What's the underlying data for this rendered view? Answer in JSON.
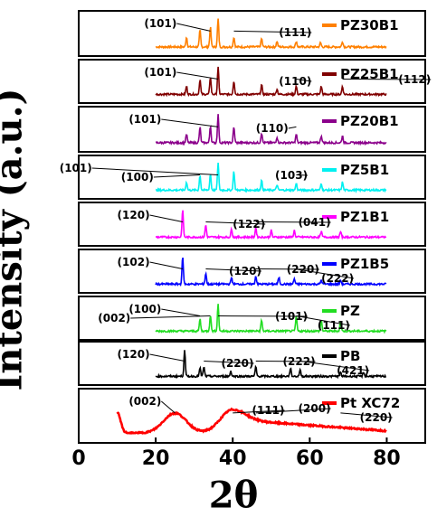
{
  "chart_data": {
    "type": "line",
    "xlabel": "2θ",
    "ylabel": "Intensity (a.u.)",
    "xlim": [
      0,
      90
    ],
    "xticks": [
      "0",
      "20",
      "40",
      "60",
      "80"
    ],
    "series": [
      {
        "name": "PZ30B1",
        "color": "#ff8000",
        "x_range": [
          20,
          80
        ],
        "peaks": [
          [
            28,
            0.35
          ],
          [
            31.5,
            0.6
          ],
          [
            34.2,
            0.7
          ],
          [
            36.2,
            1.0
          ],
          [
            40.3,
            0.35
          ],
          [
            47.5,
            0.3
          ],
          [
            51.5,
            0.2
          ],
          [
            56.5,
            0.2
          ],
          [
            62.8,
            0.15
          ],
          [
            68.5,
            0.2
          ]
        ],
        "annotations": [
          {
            "text": "(101)",
            "lx": 17,
            "peak_x": 34.2
          },
          {
            "text": "(111)",
            "lx": 52,
            "peak_x": 40.3
          }
        ]
      },
      {
        "name": "PZ25B1",
        "color": "#800000",
        "x_range": [
          20,
          80
        ],
        "peaks": [
          [
            28,
            0.3
          ],
          [
            31.5,
            0.55
          ],
          [
            34.2,
            0.65
          ],
          [
            36.2,
            1.0
          ],
          [
            40.3,
            0.5
          ],
          [
            47.5,
            0.35
          ],
          [
            51.5,
            0.2
          ],
          [
            56.5,
            0.3
          ],
          [
            63,
            0.3
          ],
          [
            68.5,
            0.3
          ]
        ],
        "annotations": [
          {
            "text": "(101)",
            "lx": 17,
            "peak_x": 36.2
          },
          {
            "text": "(110)",
            "lx": 52,
            "peak_x": 56.5
          },
          {
            "text": "(112)",
            "lx": 83,
            "peak_x": 68.5
          }
        ]
      },
      {
        "name": "PZ20B1",
        "color": "#8b008b",
        "x_range": [
          20,
          80
        ],
        "peaks": [
          [
            28,
            0.3
          ],
          [
            31.5,
            0.55
          ],
          [
            34.2,
            0.6
          ],
          [
            36.2,
            1.0
          ],
          [
            40.3,
            0.55
          ],
          [
            47.5,
            0.35
          ],
          [
            51.5,
            0.2
          ],
          [
            56.5,
            0.3
          ],
          [
            63,
            0.25
          ],
          [
            68.5,
            0.25
          ]
        ],
        "annotations": [
          {
            "text": "(101)",
            "lx": 13,
            "peak_x": 36.2
          },
          {
            "text": "(110)",
            "lx": 46,
            "peak_x": 56.5
          }
        ]
      },
      {
        "name": "PZ5B1",
        "color": "#00f0f0",
        "x_range": [
          20,
          80
        ],
        "peaks": [
          [
            28,
            0.3
          ],
          [
            31.5,
            0.55
          ],
          [
            34.2,
            0.6
          ],
          [
            36.2,
            1.0
          ],
          [
            40.3,
            0.7
          ],
          [
            47.5,
            0.35
          ],
          [
            51.5,
            0.2
          ],
          [
            56.5,
            0.25
          ],
          [
            63,
            0.25
          ],
          [
            68.5,
            0.3
          ]
        ],
        "annotations": [
          {
            "text": "(101)",
            "lx": -5,
            "peak_x": 36.2
          },
          {
            "text": "(100)",
            "lx": 11,
            "peak_x": 31.5
          },
          {
            "text": "(103)",
            "lx": 51,
            "peak_x": 56.5
          }
        ]
      },
      {
        "name": "PZ1B1",
        "color": "#ff00ff",
        "x_range": [
          20,
          80
        ],
        "peaks": [
          [
            27,
            1.0
          ],
          [
            33,
            0.45
          ],
          [
            39.7,
            0.3
          ],
          [
            46,
            0.35
          ],
          [
            50,
            0.25
          ],
          [
            56,
            0.25
          ],
          [
            63,
            0.2
          ],
          [
            68,
            0.2
          ]
        ],
        "annotations": [
          {
            "text": "(120)",
            "lx": 10,
            "peak_x": 27
          },
          {
            "text": "(122)",
            "lx": 40,
            "peak_x": 33
          },
          {
            "text": "(041)",
            "lx": 57,
            "peak_x": 46
          }
        ]
      },
      {
        "name": "PZ1B5",
        "color": "#0000ff",
        "x_range": [
          20,
          80
        ],
        "peaks": [
          [
            27,
            1.0
          ],
          [
            33,
            0.4
          ],
          [
            39.7,
            0.25
          ],
          [
            46,
            0.3
          ],
          [
            52,
            0.25
          ],
          [
            56,
            0.2
          ],
          [
            63,
            0.15
          ],
          [
            68,
            0.15
          ]
        ],
        "annotations": [
          {
            "text": "(102)",
            "lx": 10,
            "peak_x": 27
          },
          {
            "text": "(120)",
            "lx": 39,
            "peak_x": 33
          },
          {
            "text": "(220)",
            "lx": 54,
            "peak_x": 46
          },
          {
            "text": "(222)",
            "lx": 63,
            "peak_x": 56
          }
        ]
      },
      {
        "name": "PZ",
        "color": "#22dd22",
        "x_range": [
          20,
          80
        ],
        "peaks": [
          [
            31.5,
            0.45
          ],
          [
            34.2,
            0.6
          ],
          [
            36.2,
            1.0
          ],
          [
            47.5,
            0.4
          ],
          [
            56.5,
            0.55
          ],
          [
            63,
            0.4
          ],
          [
            68,
            0.35
          ]
        ],
        "annotations": [
          {
            "text": "(100)",
            "lx": 13,
            "peak_x": 31.5
          },
          {
            "text": "(002)",
            "lx": 5,
            "peak_x": 34.2
          },
          {
            "text": "(101)",
            "lx": 51,
            "peak_x": 36.2
          },
          {
            "text": "(111)",
            "lx": 62,
            "peak_x": 56.5
          }
        ]
      },
      {
        "name": "PB",
        "color": "#000000",
        "x_range": [
          20,
          80
        ],
        "peaks": [
          [
            27.5,
            1.0
          ],
          [
            31.5,
            0.3
          ],
          [
            32.5,
            0.35
          ],
          [
            39.5,
            0.2
          ],
          [
            46,
            0.35
          ],
          [
            55,
            0.3
          ],
          [
            57.5,
            0.25
          ],
          [
            68,
            0.15
          ],
          [
            74,
            0.15
          ]
        ],
        "annotations": [
          {
            "text": "(120)",
            "lx": 10,
            "peak_x": 27.5
          },
          {
            "text": "(220)",
            "lx": 37,
            "peak_x": 32.5
          },
          {
            "text": "(222)",
            "lx": 53,
            "peak_x": 46
          },
          {
            "text": "(421)",
            "lx": 67,
            "peak_x": 57.5
          }
        ]
      },
      {
        "name": "Pt XC72",
        "color": "#ff0000",
        "x_range": [
          10,
          80
        ],
        "broad": true,
        "annotations": [
          {
            "text": "(002)",
            "lx": 13,
            "peak_x": 25
          },
          {
            "text": "(111)",
            "lx": 45,
            "peak_x": 40
          },
          {
            "text": "(200)",
            "lx": 57,
            "peak_x": 46
          },
          {
            "text": "(220)",
            "lx": 73,
            "peak_x": 68
          }
        ]
      }
    ]
  }
}
